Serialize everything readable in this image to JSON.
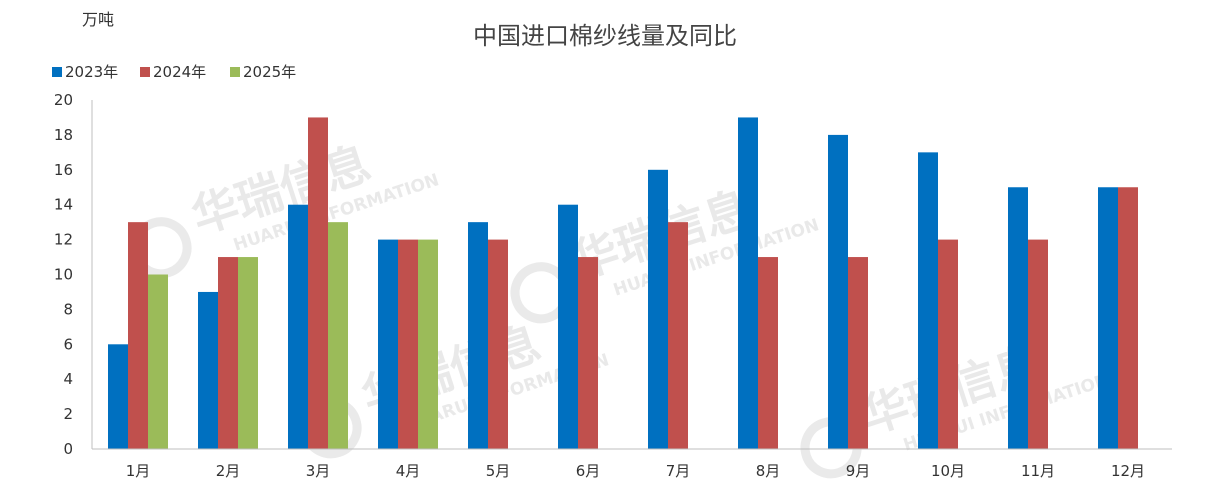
{
  "chart_data": {
    "type": "bar",
    "title": "中国进口棉纱线量及同比",
    "unit_label": "万吨",
    "categories": [
      "1月",
      "2月",
      "3月",
      "4月",
      "5月",
      "6月",
      "7月",
      "8月",
      "9月",
      "10月",
      "11月",
      "12月"
    ],
    "series": [
      {
        "name": "2023年",
        "color": "#0070C0",
        "values": [
          6,
          9,
          14,
          12,
          13,
          14,
          16,
          19,
          18,
          17,
          15,
          15
        ]
      },
      {
        "name": "2024年",
        "color": "#C0504D",
        "values": [
          13,
          11,
          19,
          12,
          12,
          11,
          13,
          11,
          11,
          12,
          12,
          15
        ]
      },
      {
        "name": "2025年",
        "color": "#9BBB59",
        "values": [
          10,
          11,
          13,
          12,
          null,
          null,
          null,
          null,
          null,
          null,
          null,
          null
        ]
      }
    ],
    "ylim": [
      0,
      20
    ],
    "yticks": [
      0,
      2,
      4,
      6,
      8,
      10,
      12,
      14,
      16,
      18,
      20
    ],
    "legend_position": "top-left",
    "grid": false
  },
  "watermark": {
    "cn": "华瑞信息",
    "en": "HUARUI INFORMATION"
  }
}
